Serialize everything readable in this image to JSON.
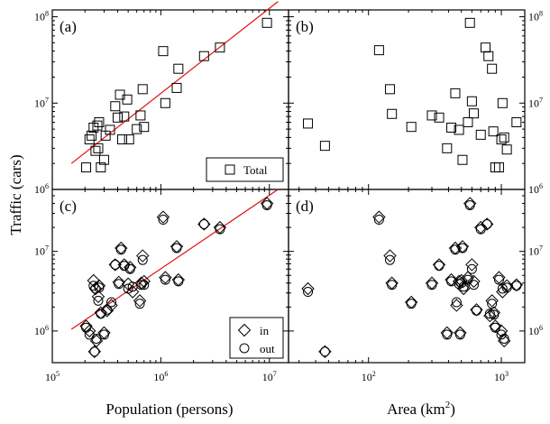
{
  "figure": {
    "ylabel": "Traffic (cars)",
    "xlabel_left": "Population (persons)",
    "xlabel_right_main": "Area (km",
    "xlabel_right_sup": "2",
    "xlabel_right_close": ")"
  },
  "chart_data": [
    {
      "panel": "(a)",
      "type": "scatter",
      "xscale": "log",
      "yscale": "log",
      "xlim": [
        100000,
        15000000
      ],
      "ylim": [
        1000000,
        120000000
      ],
      "legend": {
        "label": "Total",
        "marker": "square",
        "placement": "bottom-right"
      },
      "fit_line": {
        "x": [
          150000,
          12000000
        ],
        "y": [
          2000000,
          150000000
        ],
        "color": "#e01010"
      },
      "series": [
        {
          "name": "Total",
          "marker": "square",
          "x": [
            205000,
            220000,
            230000,
            240000,
            250000,
            260000,
            265000,
            270000,
            280000,
            300000,
            310000,
            340000,
            380000,
            400000,
            420000,
            440000,
            460000,
            490000,
            510000,
            600000,
            650000,
            680000,
            700000,
            1050000,
            1100000,
            1400000,
            1450000,
            2500000,
            3500000,
            9500000
          ],
          "y": [
            1800000,
            3800000,
            4200000,
            5200000,
            2800000,
            5500000,
            3000000,
            6000000,
            1800000,
            2200000,
            4200000,
            4900000,
            9200000,
            6800000,
            12500000,
            3800000,
            7000000,
            11000000,
            3800000,
            5000000,
            7200000,
            14500000,
            5300000,
            40000000,
            10000000,
            15000000,
            25000000,
            35000000,
            44000000,
            85000000
          ]
        }
      ]
    },
    {
      "panel": "(b)",
      "type": "scatter",
      "xscale": "log",
      "yscale": "log",
      "xlim": [
        25,
        1500
      ],
      "ylim": [
        1000000,
        120000000
      ],
      "series": [
        {
          "name": "Total",
          "marker": "square",
          "x": [
            35,
            47,
            120,
            145,
            150,
            210,
            300,
            340,
            390,
            420,
            450,
            480,
            510,
            560,
            580,
            600,
            620,
            700,
            760,
            800,
            850,
            870,
            900,
            960,
            1000,
            1020,
            1050,
            1100,
            1300
          ],
          "y": [
            5800000,
            3200000,
            41000000,
            14500000,
            7500000,
            5300000,
            7200000,
            6800000,
            3000000,
            5200000,
            13000000,
            4900000,
            2200000,
            6000000,
            85000000,
            10500000,
            7600000,
            4300000,
            44000000,
            35000000,
            25000000,
            4700000,
            1800000,
            1800000,
            3800000,
            10000000,
            4000000,
            2900000,
            6000000
          ]
        }
      ]
    },
    {
      "panel": "(c)",
      "type": "scatter",
      "xscale": "log",
      "yscale": "log",
      "xlim": [
        100000,
        15000000
      ],
      "ylim": [
        400000,
        60000000
      ],
      "legend": [
        {
          "label": "in",
          "marker": "diamond"
        },
        {
          "label": "out",
          "marker": "circle"
        }
      ],
      "legend_placement": "bottom-right",
      "fit_line": {
        "x": [
          150000,
          12000000
        ],
        "y": [
          1050000,
          60000000
        ],
        "color": "#e01010"
      },
      "series": [
        {
          "name": "in",
          "marker": "diamond",
          "x": [
            205000,
            220000,
            240000,
            245000,
            250000,
            255000,
            265000,
            270000,
            280000,
            300000,
            320000,
            350000,
            380000,
            410000,
            430000,
            460000,
            500000,
            520000,
            550000,
            640000,
            660000,
            680000,
            700000,
            1050000,
            1100000,
            1400000,
            1450000,
            2500000,
            3500000,
            9500000
          ],
          "y": [
            1150000,
            1000000,
            4300000,
            550000,
            3400000,
            750000,
            2700000,
            3700000,
            1700000,
            950000,
            1800000,
            2100000,
            6800000,
            4100000,
            11000000,
            6800000,
            3900000,
            6300000,
            3100000,
            2400000,
            4000000,
            8800000,
            4200000,
            27000000,
            4700000,
            11500000,
            4400000,
            22000000,
            20000000,
            40000000
          ]
        },
        {
          "name": "out",
          "marker": "circle",
          "x": [
            205000,
            220000,
            240000,
            245000,
            250000,
            255000,
            265000,
            270000,
            280000,
            300000,
            320000,
            350000,
            380000,
            410000,
            430000,
            460000,
            500000,
            520000,
            550000,
            640000,
            660000,
            680000,
            700000,
            1050000,
            1100000,
            1400000,
            1450000,
            2500000,
            3500000,
            9500000
          ],
          "y": [
            1100000,
            900000,
            3700000,
            550000,
            3400000,
            800000,
            2400000,
            3500000,
            1650000,
            900000,
            1850000,
            2300000,
            6800000,
            3900000,
            10500000,
            6600000,
            3400000,
            6000000,
            3600000,
            2200000,
            3800000,
            7800000,
            3800000,
            25000000,
            4400000,
            11000000,
            4200000,
            22000000,
            19000000,
            38000000
          ]
        }
      ]
    },
    {
      "panel": "(d)",
      "type": "scatter",
      "xscale": "log",
      "yscale": "log",
      "xlim": [
        25,
        1500
      ],
      "ylim": [
        400000,
        60000000
      ],
      "series": [
        {
          "name": "in",
          "marker": "diamond",
          "x": [
            35,
            47,
            120,
            145,
            150,
            210,
            300,
            340,
            390,
            420,
            450,
            460,
            480,
            490,
            500,
            510,
            520,
            560,
            580,
            600,
            620,
            650,
            700,
            780,
            820,
            850,
            880,
            900,
            960,
            1000,
            1020,
            1050,
            1100,
            1300
          ],
          "y": [
            3400000,
            550000,
            27000000,
            8800000,
            4000000,
            2300000,
            4000000,
            6800000,
            950000,
            4400000,
            11000000,
            2100000,
            4200000,
            950000,
            4300000,
            11500000,
            3400000,
            4700000,
            40000000,
            6800000,
            4200000,
            1850000,
            20000000,
            22000000,
            1550000,
            2400000,
            1700000,
            1150000,
            4700000,
            1000000,
            3100000,
            750000,
            3700000,
            3800000
          ]
        },
        {
          "name": "out",
          "marker": "circle",
          "x": [
            35,
            47,
            120,
            145,
            150,
            210,
            300,
            340,
            390,
            420,
            450,
            460,
            480,
            490,
            500,
            510,
            520,
            560,
            580,
            600,
            620,
            650,
            700,
            780,
            820,
            850,
            880,
            900,
            960,
            1000,
            1020,
            1050,
            1100,
            1300
          ],
          "y": [
            3100000,
            550000,
            25000000,
            7800000,
            3800000,
            2200000,
            3800000,
            6600000,
            900000,
            4200000,
            10500000,
            2300000,
            3900000,
            900000,
            4000000,
            11000000,
            3600000,
            4400000,
            38000000,
            6000000,
            3800000,
            1800000,
            19000000,
            22000000,
            1650000,
            2200000,
            1600000,
            1100000,
            4400000,
            900000,
            3400000,
            800000,
            3500000,
            3700000
          ]
        }
      ]
    }
  ]
}
